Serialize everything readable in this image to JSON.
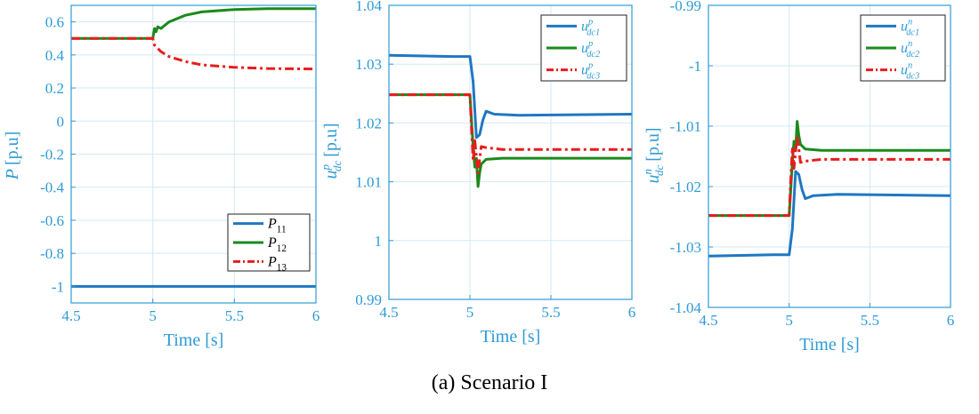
{
  "caption": "(a) Scenario I",
  "colors": {
    "axis": "#2e9bd6",
    "grid": "#d3e8f5",
    "blue": "#1f77c2",
    "green": "#1a8a1a",
    "red": "#e81c1c"
  },
  "chart_data": [
    {
      "type": "line",
      "xlabel": "Time [s]",
      "ylabel": "P [p.u]",
      "xlim": [
        4.5,
        6
      ],
      "ylim": [
        -1.1,
        0.7
      ],
      "xticks": [
        4.5,
        5,
        5.5,
        6
      ],
      "xtick_labels": [
        "4.5",
        "5",
        "5.5",
        "6"
      ],
      "yticks": [
        -1,
        -0.8,
        -0.6,
        -0.4,
        -0.2,
        0,
        0.2,
        0.4,
        0.6
      ],
      "ytick_labels": [
        "-1",
        "-0.8",
        "-0.6",
        "-0.4",
        "-0.2",
        "0",
        "0.2",
        "0.4",
        "0.6"
      ],
      "grid": true,
      "legend_position": "bottom-right",
      "series": [
        {
          "name": "P11",
          "label_main": "P",
          "label_sub": "11",
          "label_sup": "",
          "color": "#1f77c2",
          "dash": "solid",
          "x": [
            4.5,
            5.0,
            5.05,
            5.1,
            6.0
          ],
          "y": [
            -1.0,
            -1.0,
            -1.0,
            -1.0,
            -1.0
          ]
        },
        {
          "name": "P12",
          "label_main": "P",
          "label_sub": "12",
          "label_sup": "",
          "color": "#1a8a1a",
          "dash": "solid",
          "x": [
            4.5,
            5.0,
            5.01,
            5.02,
            5.03,
            5.05,
            5.1,
            5.2,
            5.3,
            5.5,
            5.7,
            6.0
          ],
          "y": [
            0.5,
            0.5,
            0.56,
            0.54,
            0.57,
            0.56,
            0.6,
            0.64,
            0.66,
            0.675,
            0.68,
            0.68
          ]
        },
        {
          "name": "P13",
          "label_main": "P",
          "label_sub": "13",
          "label_sup": "",
          "color": "#e81c1c",
          "dash": "dashdot",
          "x": [
            4.5,
            5.0,
            5.01,
            5.03,
            5.05,
            5.1,
            5.2,
            5.3,
            5.5,
            5.7,
            6.0
          ],
          "y": [
            0.5,
            0.5,
            0.46,
            0.44,
            0.42,
            0.39,
            0.36,
            0.34,
            0.325,
            0.318,
            0.315
          ]
        }
      ]
    },
    {
      "type": "line",
      "xlabel": "Time [s]",
      "ylabel": "u^p_dc [p.u]",
      "xlim": [
        4.5,
        6
      ],
      "ylim": [
        0.99,
        1.04
      ],
      "xticks": [
        4.5,
        5,
        5.5,
        6
      ],
      "xtick_labels": [
        "4.5",
        "5",
        "5.5",
        "6"
      ],
      "yticks": [
        0.99,
        1,
        1.01,
        1.02,
        1.03,
        1.04
      ],
      "ytick_labels": [
        "0.99",
        "1",
        "1.01",
        "1.02",
        "1.03",
        "1.04"
      ],
      "grid": true,
      "legend_position": "top-right",
      "series": [
        {
          "name": "u^p_dc1",
          "label_main": "u",
          "label_sub": "dc1",
          "label_sup": "p",
          "color": "#1f77c2",
          "dash": "solid",
          "x": [
            4.5,
            4.9,
            5.0,
            5.02,
            5.04,
            5.06,
            5.08,
            5.1,
            5.15,
            5.3,
            6.0
          ],
          "y": [
            1.0315,
            1.0313,
            1.0313,
            1.027,
            1.0175,
            1.018,
            1.0205,
            1.022,
            1.0215,
            1.0213,
            1.0215
          ]
        },
        {
          "name": "u^p_dc2",
          "label_main": "u",
          "label_sub": "dc2",
          "label_sup": "p",
          "color": "#1a8a1a",
          "dash": "solid",
          "x": [
            4.5,
            5.0,
            5.02,
            5.03,
            5.04,
            5.05,
            5.06,
            5.07,
            5.1,
            5.2,
            6.0
          ],
          "y": [
            1.0248,
            1.0248,
            1.016,
            1.0125,
            1.014,
            1.0092,
            1.0115,
            1.013,
            1.0138,
            1.014,
            1.014
          ]
        },
        {
          "name": "u^p_dc3",
          "label_main": "u",
          "label_sub": "dc3",
          "label_sup": "p",
          "color": "#e81c1c",
          "dash": "dashdot",
          "x": [
            4.5,
            5.0,
            5.02,
            5.03,
            5.05,
            5.07,
            5.1,
            5.2,
            6.0
          ],
          "y": [
            1.0248,
            1.0248,
            1.0135,
            1.017,
            1.0115,
            1.016,
            1.0158,
            1.0155,
            1.0155
          ]
        }
      ]
    },
    {
      "type": "line",
      "xlabel": "Time [s]",
      "ylabel": "u^n_dc [p.u]",
      "xlim": [
        4.5,
        6
      ],
      "ylim": [
        -1.04,
        -0.99
      ],
      "xticks": [
        4.5,
        5,
        5.5,
        6
      ],
      "xtick_labels": [
        "4.5",
        "5",
        "5.5",
        "6"
      ],
      "yticks": [
        -1.04,
        -1.03,
        -1.02,
        -1.01,
        -1,
        -0.99
      ],
      "ytick_labels": [
        "-1.04",
        "-1.03",
        "-1.02",
        "-1.01",
        "-1",
        "-0.99"
      ],
      "grid": true,
      "legend_position": "top-right",
      "series": [
        {
          "name": "u^n_dc1",
          "label_main": "u",
          "label_sub": "dc1",
          "label_sup": "n",
          "color": "#1f77c2",
          "dash": "solid",
          "x": [
            4.5,
            4.9,
            5.0,
            5.02,
            5.04,
            5.06,
            5.08,
            5.1,
            5.15,
            5.3,
            6.0
          ],
          "y": [
            -1.0315,
            -1.0313,
            -1.0313,
            -1.027,
            -1.0175,
            -1.018,
            -1.0205,
            -1.022,
            -1.0215,
            -1.0213,
            -1.0215
          ]
        },
        {
          "name": "u^n_dc2",
          "label_main": "u",
          "label_sub": "dc2",
          "label_sup": "n",
          "color": "#1a8a1a",
          "dash": "solid",
          "x": [
            4.5,
            5.0,
            5.02,
            5.03,
            5.04,
            5.05,
            5.06,
            5.07,
            5.1,
            5.2,
            6.0
          ],
          "y": [
            -1.0248,
            -1.0248,
            -1.016,
            -1.0125,
            -1.014,
            -1.0092,
            -1.0115,
            -1.013,
            -1.0138,
            -1.014,
            -1.014
          ]
        },
        {
          "name": "u^n_dc3",
          "label_main": "u",
          "label_sub": "dc3",
          "label_sup": "n",
          "color": "#e81c1c",
          "dash": "dashdot",
          "x": [
            4.5,
            5.0,
            5.02,
            5.03,
            5.05,
            5.07,
            5.1,
            5.2,
            6.0
          ],
          "y": [
            -1.0248,
            -1.0248,
            -1.0135,
            -1.017,
            -1.0115,
            -1.016,
            -1.0158,
            -1.0155,
            -1.0155
          ]
        }
      ]
    }
  ]
}
